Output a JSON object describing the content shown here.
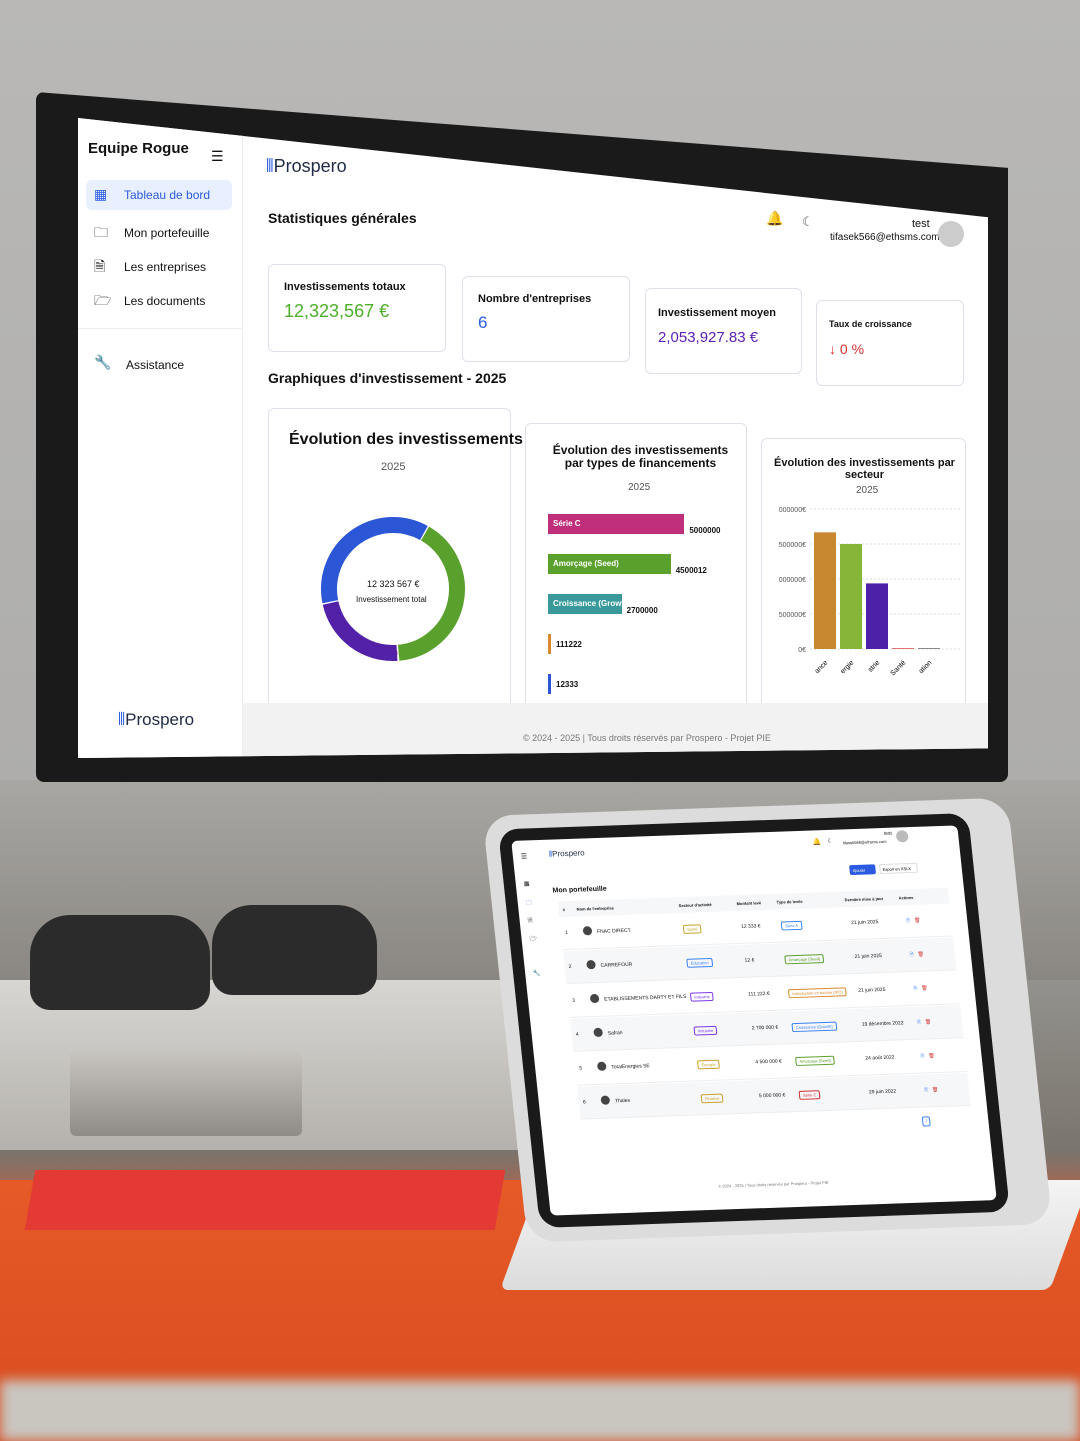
{
  "monitor": {
    "sidebar": {
      "team": "Equipe Rogue",
      "items": [
        {
          "label": "Tableau de bord",
          "icon": "grid-icon",
          "active": true
        },
        {
          "label": "Mon portefeuille",
          "icon": "folder-icon"
        },
        {
          "label": "Les entreprises",
          "icon": "document-search-icon"
        },
        {
          "label": "Les documents",
          "icon": "folder-open-icon"
        }
      ],
      "assistance": "Assistance",
      "logo": "Prospero"
    },
    "header": {
      "logo": "Prospero",
      "user_name": "test",
      "user_email": "tifasek566@ethsms.com"
    },
    "stats_title": "Statistiques générales",
    "stats": [
      {
        "label": "Investissements totaux",
        "value": "12,323,567 €",
        "color": "#4caf2a"
      },
      {
        "label": "Nombre d'entreprises",
        "value": "6",
        "color": "#2b5be0"
      },
      {
        "label": "Investissement moyen",
        "value": "2,053,927.83 €",
        "color": "#5b21b6"
      },
      {
        "label": "Taux de croissance",
        "value": "↓ 0 %",
        "color": "#d32f2f"
      }
    ],
    "charts_title": "Graphiques d'investissement - 2025",
    "footer": "© 2024 - 2025 | Tous droits réservés par Prospero - Projet PIE"
  },
  "chart_data": [
    {
      "type": "pie",
      "title": "Évolution des investissements",
      "subtitle": "2025",
      "center_value": "12 323 567 €",
      "center_label": "Investissement total",
      "values": [
        5000000,
        12333,
        2811222,
        4500012
      ],
      "colors": [
        "#5aa02c",
        "#c0307a",
        "#5221a8",
        "#2b56d6"
      ]
    },
    {
      "type": "bar",
      "orientation": "horizontal",
      "title": "Évolution des investissements par types de financements",
      "subtitle": "2025",
      "categories": [
        "Série C",
        "Amorçage (Seed)",
        "Croissance (Growth)",
        "",
        ""
      ],
      "values": [
        5000000,
        4500012,
        2700000,
        111222,
        12333
      ],
      "value_labels": [
        "5000000",
        "4500012",
        "2700000",
        "111222",
        "12333"
      ],
      "colors": [
        "#c0307a",
        "#5aa02c",
        "#3a9a9a",
        "#d8892a",
        "#2b56d6"
      ]
    },
    {
      "type": "bar",
      "title": "Évolution des investissements par secteur",
      "subtitle": "2025",
      "categories": [
        "ance",
        "ergie",
        "strie",
        "Santé",
        "ation"
      ],
      "values": [
        5000000,
        4500012,
        2811222,
        12333,
        12
      ],
      "colors": [
        "#c8882f",
        "#86b53a",
        "#4e22a8",
        "#e57373",
        "#888888"
      ],
      "yticks": [
        "000000€",
        "500000€",
        "000000€",
        "500000€",
        "0€"
      ],
      "ylim": [
        0,
        6000000
      ],
      "grid": true
    }
  ],
  "tablet": {
    "logo": "Prospero",
    "user_name": "test",
    "user_email": "tifasek566@ethsms.com",
    "title": "Mon portefeuille",
    "add_button": "Ajouter",
    "export_button": "Export en XSLX",
    "columns": [
      "#",
      "Nom de l'entreprise",
      "Secteur d'activité",
      "Montant levé",
      "Type de levée",
      "Dernière mise à jour",
      "Actions"
    ],
    "rows": [
      {
        "n": "1",
        "name": "FNAC DIRECT",
        "sector": "Santé",
        "amount": "12 333 €",
        "type": "Série A",
        "date": "21 juin 2025",
        "sc": "#c9a227",
        "tc": "#3b82f6"
      },
      {
        "n": "2",
        "name": "CARREFOUR",
        "sector": "Éducation",
        "amount": "12 €",
        "type": "Amorçage (Seed)",
        "date": "21 juin 2025",
        "sc": "#3b82f6",
        "tc": "#5aa02c"
      },
      {
        "n": "3",
        "name": "ETABLISSEMENTS DARTY ET FILS",
        "sector": "Industrie",
        "amount": "111 222 €",
        "type": "Introduction en bourse (IPO)",
        "date": "21 juin 2025",
        "sc": "#7c3aed",
        "tc": "#d8892a"
      },
      {
        "n": "4",
        "name": "Safran",
        "sector": "Industrie",
        "amount": "2 700 000 €",
        "type": "Croissance (Growth)",
        "date": "19 décembre 2022",
        "sc": "#7c3aed",
        "tc": "#3b82f6"
      },
      {
        "n": "5",
        "name": "TotalEnergies SE",
        "sector": "Énergie",
        "amount": "4 500 000 €",
        "type": "Amorçage (Seed)",
        "date": "24 août 2022",
        "sc": "#c9a227",
        "tc": "#5aa02c"
      },
      {
        "n": "6",
        "name": "Thales",
        "sector": "Finance",
        "amount": "5 000 000 €",
        "type": "Série C",
        "date": "29 juin 2022",
        "sc": "#c9a227",
        "tc": "#d32f2f"
      }
    ],
    "page": "1",
    "footer": "© 2024 - 2025 | Tous droits réservés par Prospero - Projet PIE"
  }
}
